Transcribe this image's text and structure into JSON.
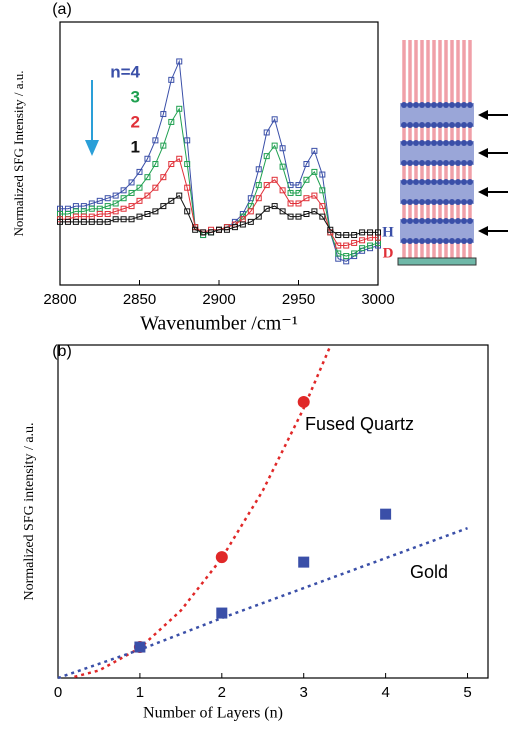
{
  "chart_data": [
    {
      "type": "line",
      "panel_label": "(a)",
      "ylabel": "Normalized SFG Intensity / a.u.",
      "xlabel": "Wavenumber /cm⁻¹",
      "xlim": [
        2800,
        3000
      ],
      "xticks": [
        2800,
        2850,
        2900,
        2950,
        3000
      ],
      "ylim": [
        0,
        1
      ],
      "x": [
        2800,
        2805,
        2810,
        2815,
        2820,
        2825,
        2830,
        2835,
        2840,
        2845,
        2850,
        2855,
        2860,
        2865,
        2870,
        2875,
        2880,
        2885,
        2890,
        2895,
        2900,
        2905,
        2910,
        2915,
        2920,
        2925,
        2930,
        2935,
        2940,
        2945,
        2950,
        2955,
        2960,
        2965,
        2970,
        2975,
        2980,
        2985,
        2990,
        2995,
        3000
      ],
      "series": [
        {
          "name": "n=4",
          "color": "#3a4fa8",
          "values": [
            0.29,
            0.29,
            0.3,
            0.3,
            0.31,
            0.32,
            0.33,
            0.34,
            0.36,
            0.39,
            0.43,
            0.48,
            0.55,
            0.65,
            0.78,
            0.85,
            0.55,
            0.22,
            0.19,
            0.2,
            0.21,
            0.22,
            0.24,
            0.27,
            0.33,
            0.44,
            0.58,
            0.63,
            0.52,
            0.38,
            0.38,
            0.46,
            0.51,
            0.42,
            0.2,
            0.1,
            0.09,
            0.11,
            0.13,
            0.14,
            0.15
          ]
        },
        {
          "name": "3",
          "color": "#1fa050",
          "values": [
            0.27,
            0.27,
            0.28,
            0.28,
            0.29,
            0.29,
            0.3,
            0.31,
            0.33,
            0.35,
            0.37,
            0.41,
            0.46,
            0.53,
            0.62,
            0.67,
            0.46,
            0.22,
            0.19,
            0.2,
            0.21,
            0.22,
            0.23,
            0.26,
            0.3,
            0.38,
            0.49,
            0.53,
            0.45,
            0.35,
            0.35,
            0.4,
            0.43,
            0.36,
            0.2,
            0.12,
            0.11,
            0.12,
            0.14,
            0.15,
            0.16
          ]
        },
        {
          "name": "2",
          "color": "#e03038",
          "values": [
            0.25,
            0.25,
            0.26,
            0.26,
            0.26,
            0.27,
            0.27,
            0.28,
            0.29,
            0.3,
            0.32,
            0.34,
            0.37,
            0.41,
            0.46,
            0.48,
            0.37,
            0.22,
            0.2,
            0.21,
            0.21,
            0.22,
            0.23,
            0.25,
            0.28,
            0.33,
            0.38,
            0.4,
            0.36,
            0.31,
            0.31,
            0.33,
            0.34,
            0.3,
            0.2,
            0.15,
            0.15,
            0.16,
            0.17,
            0.18,
            0.18
          ]
        },
        {
          "name": "1",
          "color": "#111111",
          "values": [
            0.24,
            0.24,
            0.24,
            0.24,
            0.24,
            0.24,
            0.24,
            0.25,
            0.25,
            0.25,
            0.26,
            0.27,
            0.28,
            0.3,
            0.32,
            0.34,
            0.28,
            0.21,
            0.2,
            0.2,
            0.21,
            0.21,
            0.22,
            0.23,
            0.24,
            0.26,
            0.29,
            0.3,
            0.28,
            0.26,
            0.26,
            0.27,
            0.28,
            0.26,
            0.21,
            0.19,
            0.19,
            0.19,
            0.2,
            0.2,
            0.2
          ]
        }
      ],
      "diagram_labels": [
        "H",
        "D"
      ]
    },
    {
      "type": "scatter",
      "panel_label": "(b)",
      "ylabel": "Normalized SFG intensity / a.u.",
      "xlabel": "Number of Layers (n)",
      "xlim": [
        0,
        5.25
      ],
      "xticks": [
        0,
        1,
        2,
        3,
        4,
        5
      ],
      "ylim": [
        0,
        1
      ],
      "series": [
        {
          "name": "Fused Quartz",
          "color": "#e02828",
          "marker": "circle",
          "x": [
            1,
            2,
            3
          ],
          "values": [
            0.093,
            0.363,
            0.829
          ],
          "fit_x": [
            0.2,
            0.5,
            1,
            1.5,
            2,
            2.5,
            3,
            3.33
          ],
          "fit_values": [
            0.0036,
            0.0225,
            0.09,
            0.2025,
            0.36,
            0.5625,
            0.81,
            1.0
          ]
        },
        {
          "name": "Gold",
          "color": "#3a4fa8",
          "marker": "square",
          "x": [
            1,
            2,
            3,
            4
          ],
          "values": [
            0.093,
            0.195,
            0.348,
            0.492
          ],
          "fit_x": [
            0,
            1,
            2,
            3,
            4,
            5
          ],
          "fit_values": [
            0,
            0.085,
            0.18,
            0.27,
            0.36,
            0.45
          ]
        }
      ]
    }
  ]
}
